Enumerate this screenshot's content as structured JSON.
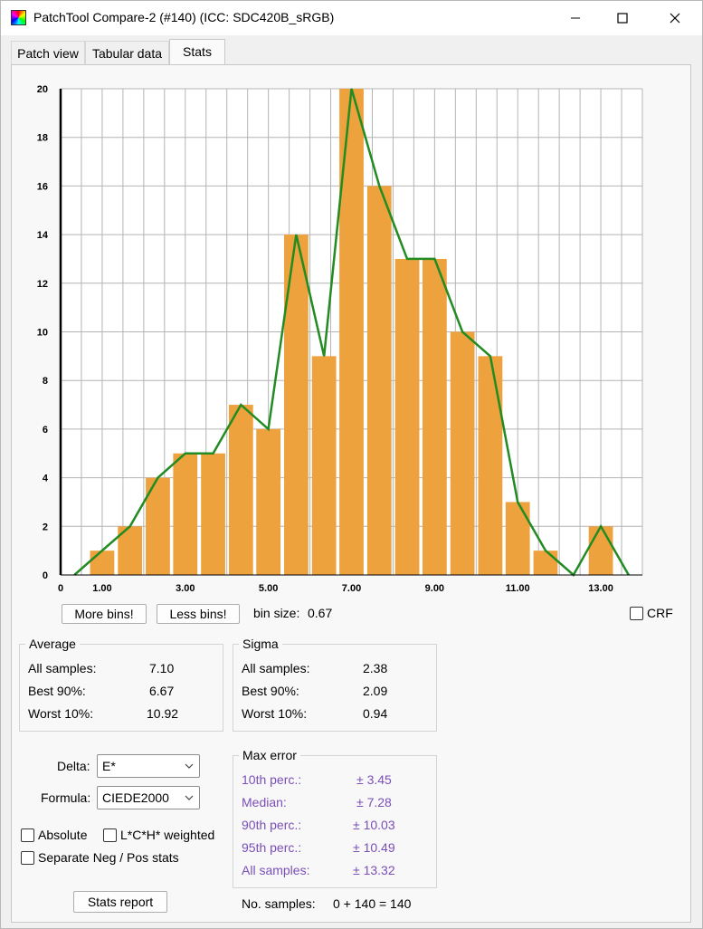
{
  "window": {
    "title": "PatchTool Compare-2 (#140) (ICC: SDC420B_sRGB)"
  },
  "tabs": [
    {
      "label": "Patch view",
      "active": false
    },
    {
      "label": "Tabular data",
      "active": false
    },
    {
      "label": "Stats",
      "active": true
    }
  ],
  "colors": {
    "bar": "#eda23e",
    "line": "#228b22",
    "grid": "#b4b4b4",
    "purple_text": "#7a4fb8"
  },
  "chart_data": {
    "type": "bar",
    "y_ticks": [
      "0",
      "2",
      "4",
      "6",
      "8",
      "10",
      "12",
      "14",
      "16",
      "18",
      "20"
    ],
    "x_ticks": [
      "0",
      "1.00",
      "3.00",
      "5.00",
      "7.00",
      "9.00",
      "11.00",
      "13.00"
    ],
    "x_tick_values": [
      0,
      1,
      3,
      5,
      7,
      9,
      11,
      13
    ],
    "xlim": [
      0,
      14
    ],
    "ylim": [
      0,
      20
    ],
    "bin_size": 0.67,
    "bins": [
      {
        "x": 1.0,
        "count": 1
      },
      {
        "x": 1.67,
        "count": 2
      },
      {
        "x": 2.34,
        "count": 4
      },
      {
        "x": 3.0,
        "count": 5
      },
      {
        "x": 3.67,
        "count": 5
      },
      {
        "x": 4.34,
        "count": 7
      },
      {
        "x": 5.0,
        "count": 6
      },
      {
        "x": 5.67,
        "count": 14
      },
      {
        "x": 6.34,
        "count": 9
      },
      {
        "x": 7.0,
        "count": 20
      },
      {
        "x": 7.67,
        "count": 16
      },
      {
        "x": 8.34,
        "count": 13
      },
      {
        "x": 9.0,
        "count": 13
      },
      {
        "x": 9.67,
        "count": 10
      },
      {
        "x": 10.34,
        "count": 9
      },
      {
        "x": 11.0,
        "count": 3
      },
      {
        "x": 11.67,
        "count": 1
      },
      {
        "x": 12.34,
        "count": 0
      },
      {
        "x": 13.0,
        "count": 2
      }
    ],
    "line": [
      {
        "x": 0.33,
        "y": 0
      },
      {
        "x": 1.0,
        "y": 1
      },
      {
        "x": 1.67,
        "y": 2
      },
      {
        "x": 2.34,
        "y": 4
      },
      {
        "x": 3.0,
        "y": 5
      },
      {
        "x": 3.67,
        "y": 5
      },
      {
        "x": 4.34,
        "y": 7
      },
      {
        "x": 5.0,
        "y": 6
      },
      {
        "x": 5.67,
        "y": 14
      },
      {
        "x": 6.34,
        "y": 9
      },
      {
        "x": 7.0,
        "y": 20
      },
      {
        "x": 7.67,
        "y": 16
      },
      {
        "x": 8.34,
        "y": 13
      },
      {
        "x": 9.0,
        "y": 13
      },
      {
        "x": 9.67,
        "y": 10
      },
      {
        "x": 10.34,
        "y": 9
      },
      {
        "x": 11.0,
        "y": 3
      },
      {
        "x": 11.67,
        "y": 1
      },
      {
        "x": 12.34,
        "y": 0
      },
      {
        "x": 13.0,
        "y": 2
      },
      {
        "x": 13.67,
        "y": 0
      }
    ]
  },
  "controls": {
    "more_bins": "More bins!",
    "less_bins": "Less bins!",
    "bin_size_label": "bin size:",
    "bin_size_value": "0.67",
    "crf_label": "CRF",
    "crf_checked": false
  },
  "average": {
    "title": "Average",
    "rows": [
      {
        "label": "All samples:",
        "value": "7.10"
      },
      {
        "label": "Best 90%:",
        "value": "6.67"
      },
      {
        "label": "Worst 10%:",
        "value": "10.92"
      }
    ]
  },
  "sigma": {
    "title": "Sigma",
    "rows": [
      {
        "label": "All samples:",
        "value": "2.38"
      },
      {
        "label": "Best 90%:",
        "value": "2.09"
      },
      {
        "label": "Worst 10%:",
        "value": "0.94"
      }
    ]
  },
  "settings": {
    "delta_label": "Delta:",
    "delta_value": "E*",
    "formula_label": "Formula:",
    "formula_value": "CIEDE2000",
    "absolute_label": "Absolute",
    "absolute_checked": false,
    "lch_label": "L*C*H* weighted",
    "lch_checked": false,
    "separate_label": "Separate Neg / Pos stats",
    "separate_checked": false,
    "stats_report": "Stats report"
  },
  "max_error": {
    "title": "Max error",
    "rows": [
      {
        "label": "10th perc.:",
        "value": "± 3.45"
      },
      {
        "label": "Median:",
        "value": "± 7.28"
      },
      {
        "label": "90th perc.:",
        "value": "± 10.03"
      },
      {
        "label": "95th perc.:",
        "value": "± 10.49"
      },
      {
        "label": "All samples:",
        "value": "± 13.32"
      }
    ]
  },
  "samples": {
    "label": "No. samples:",
    "value": "0 + 140 = 140"
  }
}
